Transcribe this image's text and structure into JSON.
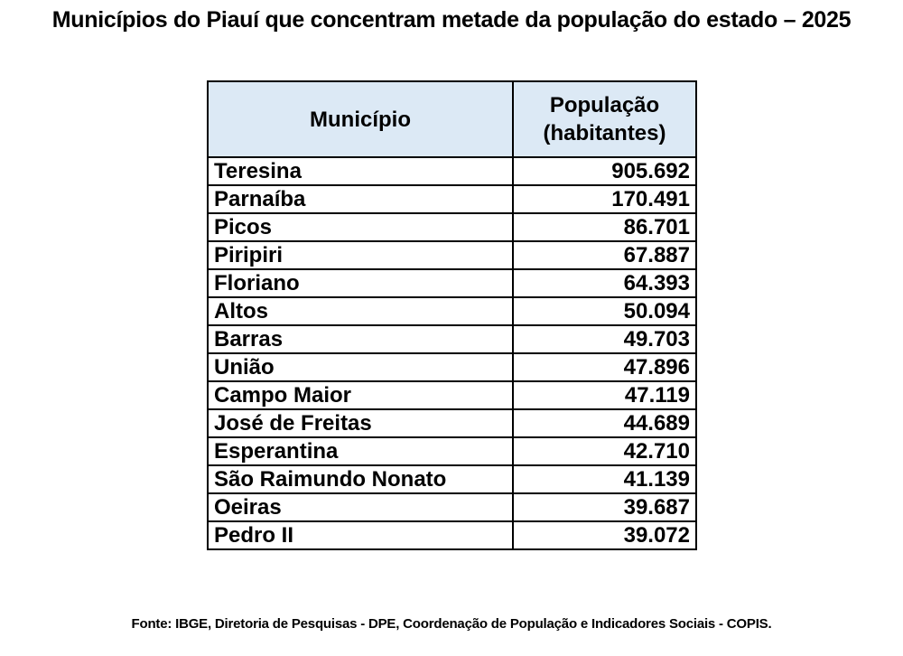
{
  "title": "Municípios do Piauí que concentram metade da população do estado – 2025",
  "table": {
    "headers": {
      "municipio": "Município",
      "populacao_line1": "População",
      "populacao_line2": "(habitantes)"
    },
    "rows": [
      {
        "municipio": "Teresina",
        "populacao": "905.692"
      },
      {
        "municipio": "Parnaíba",
        "populacao": "170.491"
      },
      {
        "municipio": "Picos",
        "populacao": "86.701"
      },
      {
        "municipio": "Piripiri",
        "populacao": "67.887"
      },
      {
        "municipio": "Floriano",
        "populacao": "64.393"
      },
      {
        "municipio": "Altos",
        "populacao": "50.094"
      },
      {
        "municipio": "Barras",
        "populacao": "49.703"
      },
      {
        "municipio": "União",
        "populacao": "47.896"
      },
      {
        "municipio": "Campo Maior",
        "populacao": "47.119"
      },
      {
        "municipio": "José de Freitas",
        "populacao": "44.689"
      },
      {
        "municipio": "Esperantina",
        "populacao": "42.710"
      },
      {
        "municipio": "São Raimundo Nonato",
        "populacao": "41.139"
      },
      {
        "municipio": "Oeiras",
        "populacao": "39.687"
      },
      {
        "municipio": "Pedro II",
        "populacao": "39.072"
      }
    ]
  },
  "source": "Fonte: IBGE, Diretoria de Pesquisas - DPE, Coordenação de População e Indicadores Sociais - COPIS.",
  "colors": {
    "header_background": "#dce9f5",
    "border": "#000000",
    "text": "#000000"
  }
}
